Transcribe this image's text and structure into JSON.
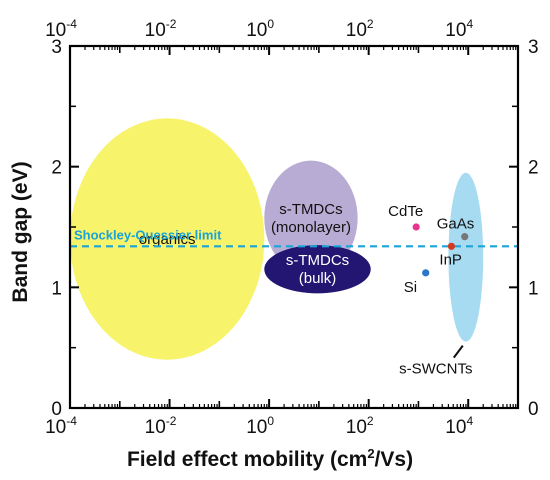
{
  "chart_data": {
    "type": "scatter",
    "title": "",
    "xlabel": "Field effect mobility (cm",
    "xlabel_sup": "2",
    "xlabel_tail": "/Vs)",
    "ylabel": "Band gap (eV)",
    "xscale": "log",
    "xlim": [
      0.0001,
      100000
    ],
    "ylim": [
      0,
      3
    ],
    "x_ticks": [
      {
        "base": "10",
        "exp": "-4",
        "value": 0.0001
      },
      {
        "base": "10",
        "exp": "-2",
        "value": 0.01
      },
      {
        "base": "10",
        "exp": "0",
        "value": 1
      },
      {
        "base": "10",
        "exp": "2",
        "value": 100
      },
      {
        "base": "10",
        "exp": "4",
        "value": 10000
      }
    ],
    "y_ticks": [
      {
        "label": "0",
        "value": 0
      },
      {
        "label": "1",
        "value": 1
      },
      {
        "label": "2",
        "value": 2
      },
      {
        "label": "3",
        "value": 3
      }
    ],
    "grid": false,
    "regions": [
      {
        "name": "organics",
        "label_lines": [
          "organics"
        ],
        "x_range": [
          0.0001,
          0.8
        ],
        "y_range": [
          0.4,
          2.4
        ],
        "color": "#f7f36a",
        "label_color": "dark"
      },
      {
        "name": "s-TMDCs (monolayer)",
        "label_lines": [
          "s-TMDCs",
          "(monolayer)"
        ],
        "x_range": [
          0.8,
          60
        ],
        "y_range": [
          1.1,
          2.05
        ],
        "color": "#b4a8d2",
        "label_color": "dark"
      },
      {
        "name": "s-TMDCs (bulk)",
        "label_lines": [
          "s-TMDCs",
          "(bulk)"
        ],
        "x_range": [
          0.8,
          110
        ],
        "y_range": [
          0.95,
          1.35
        ],
        "color": "#221672",
        "label_color": "light"
      },
      {
        "name": "s-SWCNTs",
        "label_lines": [],
        "x_range": [
          4000,
          20000
        ],
        "y_range": [
          0.55,
          1.95
        ],
        "color": "#a7dbf2",
        "label_color": "dark"
      }
    ],
    "points": [
      {
        "label": "CdTe",
        "x": 900,
        "y": 1.5,
        "color": "#e8348c"
      },
      {
        "label": "GaAs",
        "x": 8500,
        "y": 1.42,
        "color": "#777777"
      },
      {
        "label": "InP",
        "x": 4600,
        "y": 1.34,
        "color": "#d13a22"
      },
      {
        "label": "Si",
        "x": 1400,
        "y": 1.12,
        "color": "#2a77c8"
      }
    ],
    "swcnt_label": "s-SWCNTs",
    "reference_line": {
      "label": "Shockley-Quessier limit",
      "y": 1.34,
      "color": "#1aa3d6",
      "style": "dashed"
    }
  }
}
